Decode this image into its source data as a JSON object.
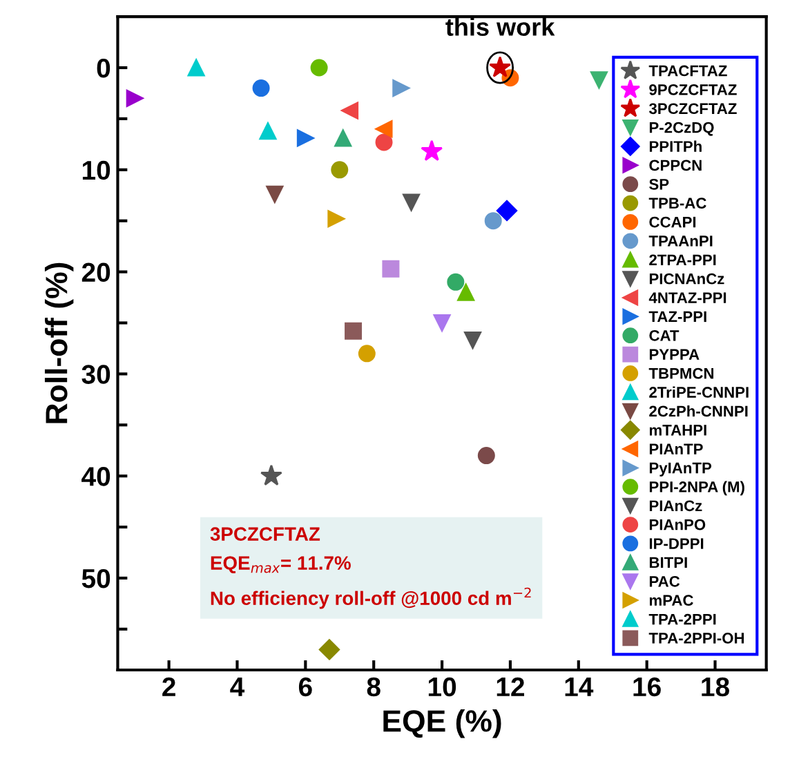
{
  "chart_data": {
    "type": "scatter",
    "xlabel": "EQE (%)",
    "ylabel": "Roll-off (%)",
    "xlim": [
      0.5,
      19.5
    ],
    "xticks": [
      2,
      4,
      6,
      8,
      10,
      12,
      14,
      16,
      18
    ],
    "ylim": [
      59,
      -5
    ],
    "yticks": [
      0,
      {
        "value": 5,
        "label": null
      },
      10,
      {
        "value": 15,
        "label": null
      },
      20,
      {
        "value": 25,
        "label": null
      },
      30,
      {
        "value": 35,
        "label": null
      },
      40,
      {
        "value": 45,
        "label": null
      },
      50,
      {
        "value": 55,
        "label": null
      }
    ],
    "grid": false,
    "legend": "right",
    "annotations": [
      {
        "text": "this work",
        "x": 11.7,
        "y": 0
      },
      "3PCZCFTAZ\nEQE$_{max}$= 11.7%\nNo efficiency roll-off @1000 cd m$^{−2}$"
    ],
    "series": [
      {
        "name": "TPACFTAZ",
        "color": "#555555",
        "marker": "star",
        "x": [
          5.0
        ],
        "values": [
          40
        ]
      },
      {
        "name": "9PCZCFTAZ",
        "color": "#ff00ff",
        "marker": "star",
        "x": [
          9.7
        ],
        "values": [
          8.2
        ]
      },
      {
        "name": "3PCZCFTAZ",
        "color": "#cc0000",
        "marker": "star",
        "x": [
          11.7
        ],
        "values": [
          0
        ]
      },
      {
        "name": "P-2CzDQ",
        "color": "#3cb371",
        "marker": "triangle_down",
        "x": [
          14.6
        ],
        "values": [
          1.2
        ]
      },
      {
        "name": "PPITPh",
        "color": "#0000ff",
        "marker": "diamond",
        "x": [
          11.9
        ],
        "values": [
          14
        ]
      },
      {
        "name": "CPPCN",
        "color": "#9900cc",
        "marker": "triangle_right",
        "x": [
          1.0
        ],
        "values": [
          3
        ]
      },
      {
        "name": "SP",
        "color": "#7b4a4a",
        "marker": "circle",
        "x": [
          11.3
        ],
        "values": [
          38
        ]
      },
      {
        "name": "TPB-AC",
        "color": "#999900",
        "marker": "circle",
        "x": [
          7.0
        ],
        "values": [
          10
        ]
      },
      {
        "name": "CCAPI",
        "color": "#ff6600",
        "marker": "circle",
        "x": [
          12.0
        ],
        "values": [
          1
        ]
      },
      {
        "name": "TPAAnPI",
        "color": "#6699cc",
        "marker": "circle",
        "x": [
          11.5
        ],
        "values": [
          15
        ]
      },
      {
        "name": "2TPA-PPI",
        "color": "#66bb00",
        "marker": "triangle",
        "x": [
          10.7
        ],
        "values": [
          22
        ]
      },
      {
        "name": "PICNAnCz",
        "color": "#555555",
        "marker": "triangle_down",
        "x": [
          9.1
        ],
        "values": [
          13.2
        ]
      },
      {
        "name": "4NTAZ-PPI",
        "color": "#ee4444",
        "marker": "triangle_left",
        "x": [
          7.3
        ],
        "values": [
          4.2
        ]
      },
      {
        "name": "TAZ-PPI",
        "color": "#1a6fe0",
        "marker": "triangle_right",
        "x": [
          6.0
        ],
        "values": [
          6.9
        ]
      },
      {
        "name": "CAT",
        "color": "#33aa66",
        "marker": "circle",
        "x": [
          10.4
        ],
        "values": [
          21
        ]
      },
      {
        "name": "PYPPA",
        "color": "#bb88dd",
        "marker": "square",
        "x": [
          8.5
        ],
        "values": [
          19.7
        ]
      },
      {
        "name": "TBPMCN",
        "color": "#d4a000",
        "marker": "circle",
        "x": [
          7.8
        ],
        "values": [
          28
        ]
      },
      {
        "name": "2TriPE-CNNPI",
        "color": "#00cccc",
        "marker": "triangle",
        "x": [
          2.8
        ],
        "values": [
          0
        ]
      },
      {
        "name": "2CzPh-CNNPI",
        "color": "#7a4a44",
        "marker": "triangle_down",
        "x": [
          5.1
        ],
        "values": [
          12.4
        ]
      },
      {
        "name": "mTAHPI",
        "color": "#888800",
        "marker": "diamond",
        "x": [
          6.7
        ],
        "values": [
          57
        ]
      },
      {
        "name": "PIAnTP",
        "color": "#ff6600",
        "marker": "triangle_left",
        "x": [
          8.3
        ],
        "values": [
          6
        ]
      },
      {
        "name": "PyIAnTP",
        "color": "#6699cc",
        "marker": "triangle_right",
        "x": [
          8.8
        ],
        "values": [
          2
        ]
      },
      {
        "name": "PPI-2NPA (M)",
        "color": "#66bb00",
        "marker": "circle",
        "x": [
          6.4
        ],
        "values": [
          0
        ]
      },
      {
        "name": "PIAnCz",
        "color": "#555555",
        "marker": "triangle_down",
        "x": [
          10.9
        ],
        "values": [
          26.7
        ]
      },
      {
        "name": "PIAnPO",
        "color": "#ee4444",
        "marker": "circle",
        "x": [
          8.3
        ],
        "values": [
          7.3
        ]
      },
      {
        "name": "IP-DPPI",
        "color": "#1a6fe0",
        "marker": "circle",
        "x": [
          4.7
        ],
        "values": [
          2
        ]
      },
      {
        "name": "BITPI",
        "color": "#33aa77",
        "marker": "triangle",
        "x": [
          7.1
        ],
        "values": [
          6.9
        ]
      },
      {
        "name": "PAC",
        "color": "#aa77ee",
        "marker": "triangle_down",
        "x": [
          10.0
        ],
        "values": [
          25
        ]
      },
      {
        "name": "mPAC",
        "color": "#d4a000",
        "marker": "triangle_right",
        "x": [
          6.9
        ],
        "values": [
          14.8
        ]
      },
      {
        "name": "TPA-2PPI",
        "color": "#00cccc",
        "marker": "triangle",
        "x": [
          4.9
        ],
        "values": [
          6.2
        ]
      },
      {
        "name": "TPA-2PPI-OH",
        "color": "#8b5a5a",
        "marker": "square",
        "x": [
          7.4
        ],
        "values": [
          25.8
        ]
      }
    ]
  }
}
